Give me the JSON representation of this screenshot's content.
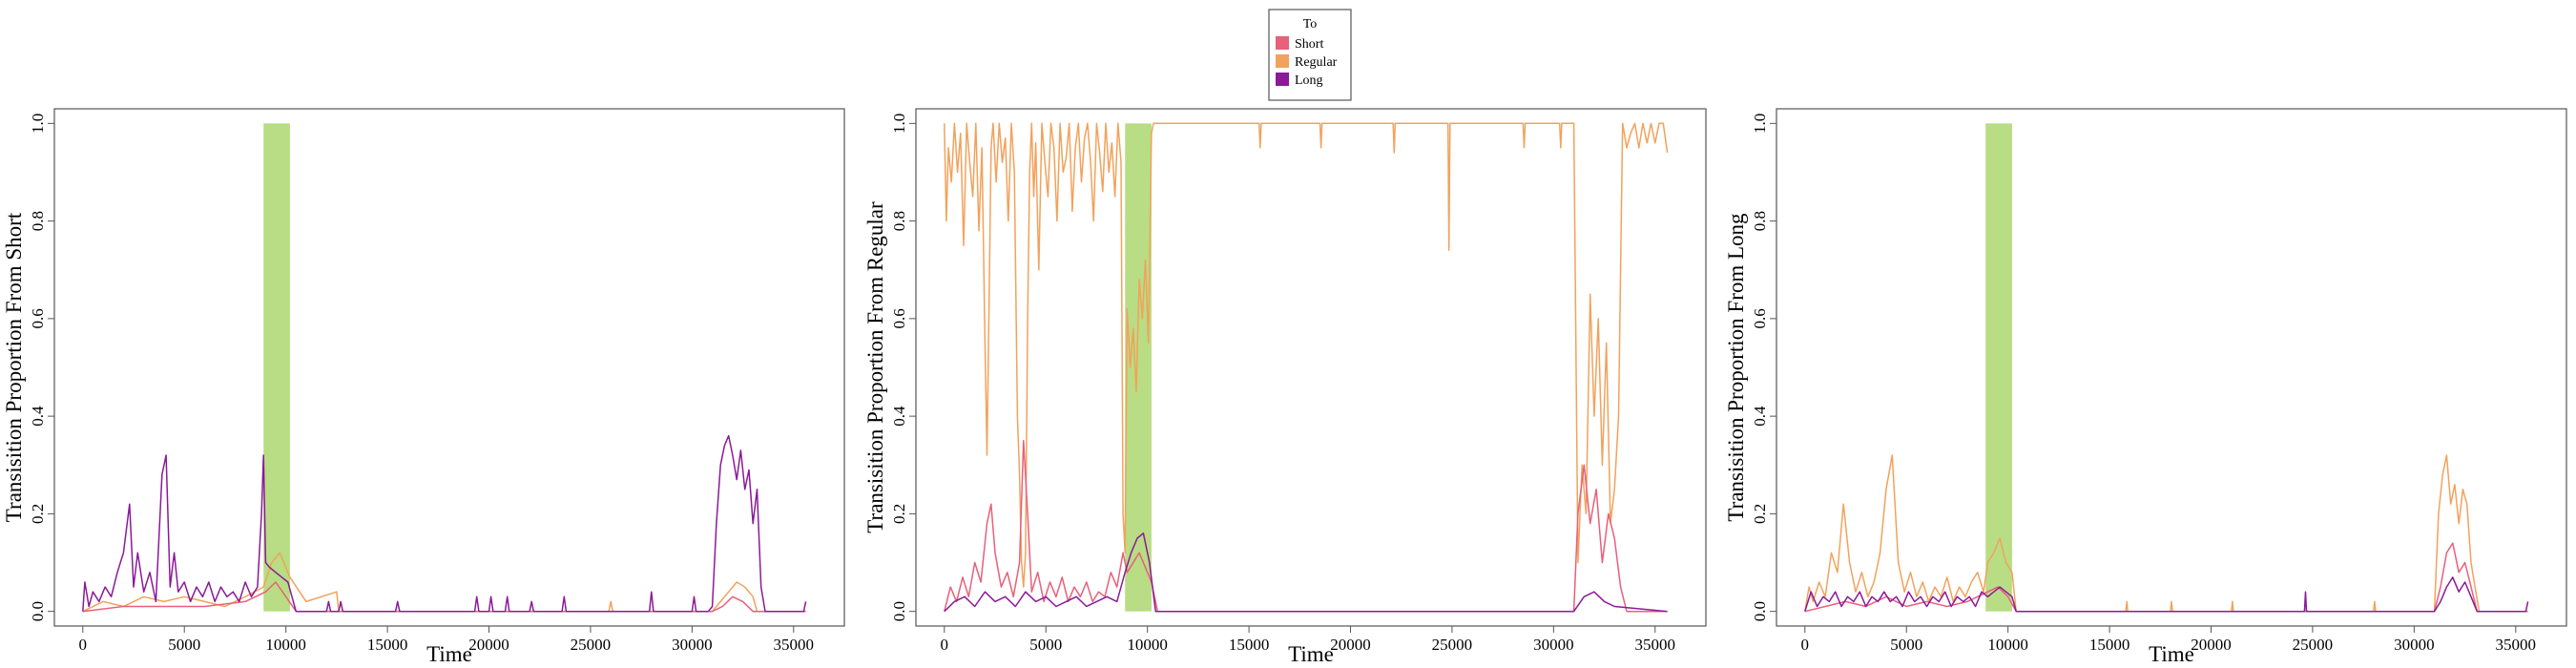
{
  "legend": {
    "title": "To",
    "items": [
      {
        "label": "Short",
        "color": "#e8607a"
      },
      {
        "label": "Regular",
        "color": "#f2a25c"
      },
      {
        "label": "Long",
        "color": "#8b1a98"
      }
    ]
  },
  "highlight_color": "#b8dd84",
  "chart_data": [
    {
      "type": "line",
      "xlabel": "Time",
      "ylabel": "Transisition Proportion From Short",
      "xlim": [
        -1400,
        37500
      ],
      "ylim": [
        -0.03,
        1.03
      ],
      "xticks": [
        0,
        5000,
        10000,
        15000,
        20000,
        25000,
        30000,
        35000
      ],
      "yticks": [
        0.0,
        0.2,
        0.4,
        0.6,
        0.8,
        1.0
      ],
      "ytick_labels": [
        "0.0",
        "0.2",
        "0.4",
        "0.6",
        "0.8",
        "1.0"
      ],
      "highlight_band": {
        "x_start": 8900,
        "x_end": 10200,
        "y_max": 1.0
      },
      "series": [
        {
          "color": "#f2a25c",
          "x": [
            0,
            1000,
            2000,
            3000,
            4000,
            5000,
            6000,
            7000,
            8000,
            8900,
            9300,
            9700,
            10200,
            11000,
            12500,
            12600,
            13000,
            25900,
            26000,
            26100,
            31000,
            31400,
            31800,
            32200,
            32600,
            33000,
            33200,
            35600
          ],
          "y": [
            0,
            0.02,
            0.01,
            0.03,
            0.02,
            0.03,
            0.02,
            0.01,
            0.03,
            0.05,
            0.1,
            0.12,
            0.07,
            0.02,
            0.04,
            0,
            0,
            0,
            0.02,
            0,
            0,
            0.02,
            0.04,
            0.06,
            0.05,
            0.03,
            0,
            0
          ]
        },
        {
          "color": "#e8607a",
          "x": [
            0,
            2000,
            4000,
            6000,
            8000,
            9000,
            9500,
            10000,
            10500,
            31000,
            31500,
            32000,
            32500,
            33000,
            35600
          ],
          "y": [
            0,
            0.01,
            0.01,
            0.01,
            0.02,
            0.04,
            0.06,
            0.03,
            0,
            0,
            0.01,
            0.03,
            0.02,
            0,
            0
          ]
        },
        {
          "color": "#8b1a98",
          "x": [
            0,
            100,
            300,
            500,
            800,
            1100,
            1400,
            1700,
            2000,
            2300,
            2500,
            2700,
            3000,
            3300,
            3600,
            3900,
            4100,
            4300,
            4500,
            4700,
            5000,
            5300,
            5600,
            5900,
            6200,
            6500,
            6800,
            7100,
            7400,
            7700,
            8000,
            8300,
            8600,
            8800,
            8900,
            9000,
            9200,
            9500,
            9800,
            10100,
            10300,
            10500,
            12000,
            12100,
            12200,
            12600,
            12700,
            12800,
            15400,
            15500,
            15600,
            19300,
            19400,
            19500,
            20000,
            20100,
            20200,
            20800,
            20900,
            21000,
            22000,
            22100,
            22200,
            23600,
            23700,
            23800,
            27900,
            28000,
            28100,
            30000,
            30100,
            30200,
            30800,
            31000,
            31200,
            31400,
            31600,
            31800,
            32000,
            32200,
            32400,
            32600,
            32800,
            33000,
            33200,
            33400,
            33600,
            35500,
            35600
          ],
          "y": [
            0,
            0.06,
            0.01,
            0.04,
            0.02,
            0.05,
            0.03,
            0.08,
            0.12,
            0.22,
            0.05,
            0.12,
            0.04,
            0.08,
            0.02,
            0.28,
            0.32,
            0.05,
            0.12,
            0.04,
            0.06,
            0.02,
            0.05,
            0.03,
            0.06,
            0.02,
            0.05,
            0.03,
            0.04,
            0.02,
            0.06,
            0.03,
            0.05,
            0.2,
            0.32,
            0.1,
            0.09,
            0.08,
            0.07,
            0.06,
            0.03,
            0,
            0,
            0.02,
            0,
            0,
            0.02,
            0,
            0,
            0.02,
            0,
            0,
            0.03,
            0,
            0,
            0.03,
            0,
            0,
            0.03,
            0,
            0,
            0.02,
            0,
            0,
            0.03,
            0,
            0,
            0.04,
            0,
            0,
            0.03,
            0,
            0,
            0.01,
            0.18,
            0.3,
            0.34,
            0.36,
            0.32,
            0.27,
            0.33,
            0.25,
            0.29,
            0.18,
            0.25,
            0.05,
            0,
            0,
            0.02
          ]
        }
      ]
    },
    {
      "type": "line",
      "xlabel": "Time",
      "ylabel": "Transisition Proportion From Regular",
      "xlim": [
        -1400,
        37500
      ],
      "ylim": [
        -0.03,
        1.03
      ],
      "xticks": [
        0,
        5000,
        10000,
        15000,
        20000,
        25000,
        30000,
        35000
      ],
      "yticks": [
        0.0,
        0.2,
        0.4,
        0.6,
        0.8,
        1.0
      ],
      "ytick_labels": [
        "0.0",
        "0.2",
        "0.4",
        "0.6",
        "0.8",
        "1.0"
      ],
      "highlight_band": {
        "x_start": 8900,
        "x_end": 10200,
        "y_max": 1.0
      },
      "series": [
        {
          "color": "#f2a25c",
          "x": [
            0,
            100,
            200,
            350,
            500,
            650,
            800,
            950,
            1100,
            1250,
            1400,
            1550,
            1700,
            1850,
            2000,
            2100,
            2200,
            2300,
            2400,
            2550,
            2700,
            2850,
            3000,
            3150,
            3300,
            3450,
            3600,
            3700,
            3800,
            3900,
            4000,
            4100,
            4200,
            4300,
            4400,
            4500,
            4650,
            4800,
            4950,
            5100,
            5250,
            5400,
            5550,
            5700,
            5850,
            6000,
            6150,
            6300,
            6450,
            6600,
            6750,
            6900,
            7050,
            7200,
            7350,
            7500,
            7650,
            7800,
            7950,
            8100,
            8250,
            8400,
            8550,
            8700,
            8800,
            8900,
            9000,
            9150,
            9300,
            9450,
            9600,
            9750,
            9900,
            10050,
            10200,
            10300,
            10400,
            15500,
            15550,
            15600,
            18500,
            18550,
            18600,
            22100,
            22150,
            22200,
            24800,
            24850,
            24900,
            28500,
            28550,
            28600,
            30300,
            30350,
            30400,
            31000,
            31200,
            31400,
            31600,
            31800,
            32000,
            32200,
            32400,
            32600,
            32800,
            33000,
            33200,
            33400,
            33600,
            33800,
            34000,
            34200,
            34400,
            34600,
            34800,
            35000,
            35200,
            35400,
            35600
          ],
          "y": [
            1.0,
            0.8,
            0.95,
            0.88,
            1.0,
            0.9,
            0.98,
            0.75,
            1.0,
            0.92,
            0.85,
            1.0,
            0.78,
            0.95,
            0.55,
            0.32,
            0.62,
            0.95,
            1.0,
            0.88,
            1.0,
            0.92,
            0.97,
            0.8,
            1.0,
            0.9,
            0.4,
            0.28,
            0.1,
            0.05,
            0.12,
            0.6,
            0.9,
            1.0,
            0.85,
            0.96,
            0.7,
            1.0,
            0.92,
            0.85,
            1.0,
            0.95,
            0.8,
            1.0,
            0.9,
            0.93,
            1.0,
            0.82,
            0.95,
            1.0,
            0.88,
            0.97,
            1.0,
            0.92,
            0.8,
            1.0,
            0.94,
            0.86,
            1.0,
            0.9,
            0.96,
            0.85,
            1.0,
            0.92,
            0.2,
            0.12,
            0.62,
            0.5,
            0.58,
            0.45,
            0.68,
            0.6,
            0.72,
            0.55,
            0.98,
            1.0,
            1.0,
            1.0,
            0.95,
            1.0,
            1.0,
            0.95,
            1.0,
            1.0,
            0.94,
            1.0,
            1.0,
            0.74,
            1.0,
            1.0,
            0.95,
            1.0,
            1.0,
            0.95,
            1.0,
            1.0,
            0.1,
            0.3,
            0.2,
            0.65,
            0.4,
            0.6,
            0.3,
            0.55,
            0.18,
            0.25,
            0.4,
            1.0,
            0.95,
            0.98,
            1.0,
            0.95,
            1.0,
            0.96,
            1.0,
            0.96,
            1.0,
            1.0,
            0.94
          ]
        },
        {
          "color": "#e8607a",
          "x": [
            0,
            300,
            600,
            900,
            1200,
            1500,
            1800,
            2100,
            2300,
            2500,
            2800,
            3100,
            3400,
            3700,
            3900,
            4100,
            4300,
            4600,
            4900,
            5200,
            5500,
            5800,
            6100,
            6400,
            6700,
            7000,
            7300,
            7600,
            7900,
            8200,
            8500,
            8800,
            9000,
            9300,
            9600,
            9900,
            10200,
            10500,
            31000,
            31200,
            31500,
            31800,
            32100,
            32400,
            32700,
            33000,
            33300,
            33600,
            35600
          ],
          "y": [
            0,
            0.05,
            0.02,
            0.07,
            0.03,
            0.1,
            0.06,
            0.18,
            0.22,
            0.12,
            0.05,
            0.08,
            0.03,
            0.1,
            0.35,
            0.2,
            0.04,
            0.08,
            0.02,
            0.06,
            0.03,
            0.07,
            0.02,
            0.05,
            0.03,
            0.06,
            0.02,
            0.04,
            0.03,
            0.08,
            0.05,
            0.12,
            0.08,
            0.1,
            0.12,
            0.09,
            0.06,
            0,
            0,
            0.2,
            0.3,
            0.18,
            0.25,
            0.1,
            0.2,
            0.15,
            0.05,
            0,
            0
          ]
        },
        {
          "color": "#8b1a98",
          "x": [
            0,
            500,
            1000,
            1500,
            2000,
            2500,
            3000,
            3500,
            4000,
            4500,
            5000,
            5500,
            6000,
            6500,
            7000,
            7500,
            8000,
            8500,
            8900,
            9200,
            9500,
            9800,
            10100,
            10400,
            31000,
            31500,
            32000,
            32500,
            33000,
            35600
          ],
          "y": [
            0,
            0.02,
            0.03,
            0.01,
            0.04,
            0.02,
            0.03,
            0.01,
            0.04,
            0.02,
            0.03,
            0.01,
            0.02,
            0.03,
            0.01,
            0.02,
            0.03,
            0.02,
            0.08,
            0.12,
            0.15,
            0.16,
            0.1,
            0,
            0,
            0.03,
            0.04,
            0.02,
            0.01,
            0
          ]
        }
      ]
    },
    {
      "type": "line",
      "xlabel": "Time",
      "ylabel": "Transisition Proportion From Long",
      "xlim": [
        -1400,
        37500
      ],
      "ylim": [
        -0.03,
        1.03
      ],
      "xticks": [
        0,
        5000,
        10000,
        15000,
        20000,
        25000,
        30000,
        35000
      ],
      "yticks": [
        0.0,
        0.2,
        0.4,
        0.6,
        0.8,
        1.0
      ],
      "ytick_labels": [
        "0.0",
        "0.2",
        "0.4",
        "0.6",
        "0.8",
        "1.0"
      ],
      "highlight_band": {
        "x_start": 8900,
        "x_end": 10200,
        "y_max": 1.0
      },
      "series": [
        {
          "color": "#f2a25c",
          "x": [
            0,
            200,
            400,
            700,
            1000,
            1300,
            1600,
            1900,
            2200,
            2500,
            2800,
            3100,
            3400,
            3700,
            4000,
            4300,
            4600,
            4900,
            5200,
            5500,
            5800,
            6100,
            6400,
            6700,
            7000,
            7300,
            7600,
            7900,
            8200,
            8500,
            8800,
            9000,
            9300,
            9600,
            9900,
            10200,
            10400,
            15800,
            15850,
            15900,
            18000,
            18050,
            18100,
            21000,
            21050,
            21100,
            28000,
            28050,
            28100,
            31000,
            31200,
            31400,
            31600,
            31800,
            32000,
            32200,
            32400,
            32600,
            32800,
            33000,
            33200,
            35600
          ],
          "y": [
            0,
            0.05,
            0.02,
            0.06,
            0.03,
            0.12,
            0.08,
            0.22,
            0.1,
            0.04,
            0.08,
            0.03,
            0.06,
            0.12,
            0.25,
            0.32,
            0.1,
            0.04,
            0.08,
            0.03,
            0.06,
            0.02,
            0.05,
            0.03,
            0.07,
            0.02,
            0.05,
            0.03,
            0.06,
            0.08,
            0.04,
            0.1,
            0.12,
            0.15,
            0.1,
            0.08,
            0,
            0,
            0.02,
            0,
            0,
            0.02,
            0,
            0,
            0.02,
            0,
            0,
            0.02,
            0,
            0,
            0.2,
            0.28,
            0.32,
            0.22,
            0.26,
            0.18,
            0.25,
            0.22,
            0.1,
            0.05,
            0,
            0
          ]
        },
        {
          "color": "#e8607a",
          "x": [
            0,
            1000,
            2000,
            3000,
            4000,
            5000,
            6000,
            7000,
            8000,
            9000,
            9500,
            10000,
            10400,
            31000,
            31300,
            31600,
            31900,
            32200,
            32500,
            32800,
            33100,
            35600
          ],
          "y": [
            0,
            0.01,
            0.02,
            0.01,
            0.03,
            0.01,
            0.02,
            0.01,
            0.02,
            0.04,
            0.05,
            0.03,
            0,
            0,
            0.05,
            0.12,
            0.14,
            0.08,
            0.1,
            0.05,
            0,
            0
          ]
        },
        {
          "color": "#8b1a98",
          "x": [
            0,
            300,
            600,
            900,
            1200,
            1500,
            1800,
            2100,
            2400,
            2700,
            3000,
            3300,
            3600,
            3900,
            4200,
            4500,
            4800,
            5100,
            5400,
            5700,
            6000,
            6300,
            6600,
            6900,
            7200,
            7500,
            7800,
            8100,
            8400,
            8700,
            9000,
            9300,
            9600,
            9900,
            10200,
            10400,
            24600,
            24650,
            24700,
            31000,
            31300,
            31600,
            31900,
            32200,
            32500,
            32800,
            33100,
            35500,
            35600
          ],
          "y": [
            0,
            0.04,
            0.01,
            0.03,
            0.02,
            0.04,
            0.01,
            0.03,
            0.02,
            0.04,
            0.01,
            0.03,
            0.02,
            0.04,
            0.02,
            0.03,
            0.01,
            0.04,
            0.02,
            0.03,
            0.01,
            0.03,
            0.02,
            0.04,
            0.01,
            0.03,
            0.02,
            0.03,
            0.01,
            0.04,
            0.03,
            0.04,
            0.05,
            0.04,
            0.03,
            0,
            0,
            0.04,
            0,
            0,
            0.02,
            0.05,
            0.07,
            0.04,
            0.06,
            0.03,
            0,
            0,
            0.02
          ]
        }
      ]
    }
  ]
}
